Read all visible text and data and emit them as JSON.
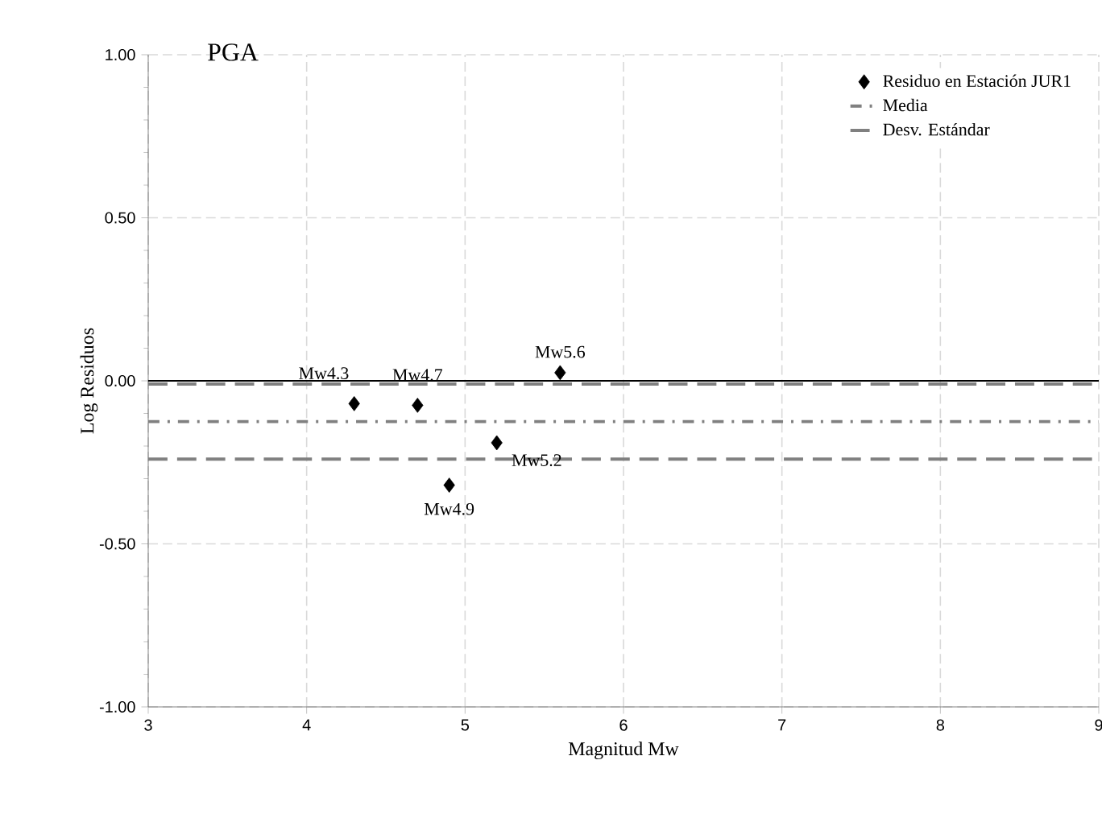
{
  "chart_data": {
    "type": "scatter",
    "title": "PGA",
    "xlabel": "Magnitud  Mw",
    "ylabel": "Log Residuos",
    "xlim": [
      3,
      9
    ],
    "xticks": [
      3,
      4,
      5,
      6,
      7,
      8,
      9
    ],
    "ylim": [
      -1,
      1
    ],
    "yticks": [
      {
        "value": -1,
        "label": "-1.00"
      },
      {
        "value": -0.5,
        "label": "-0.50"
      },
      {
        "value": 0,
        "label": "0.00"
      },
      {
        "value": 0.5,
        "label": "0.50"
      },
      {
        "value": 1,
        "label": "1.00"
      }
    ],
    "grid": true,
    "legend": "top right",
    "marker": "diamond",
    "x": [
      4.3,
      4.7,
      4.9,
      5.2,
      5.6
    ],
    "series": [
      {
        "name": "Residuo en Estación JUR1",
        "color": "#000000",
        "values": [
          -0.07,
          -0.075,
          -0.32,
          -0.19,
          0.025
        ]
      }
    ],
    "ref_lines": [
      {
        "axis": "y",
        "value": 0,
        "color": "#000000",
        "line_style": "solid"
      },
      {
        "axis": "y",
        "value": -0.125,
        "label": "Media",
        "color": "#808080",
        "line_style": "dashdot"
      },
      {
        "axis": "y",
        "value": -0.01,
        "label": "Desv. Estándar",
        "color": "#808080",
        "line_style": "dashed"
      },
      {
        "axis": "y",
        "value": -0.24,
        "color": "#808080",
        "line_style": "dashed"
      }
    ],
    "annotations": [
      {
        "text": "Mw4.3",
        "x": 4.3,
        "y": -0.07
      },
      {
        "text": "Mw4.7",
        "x": 4.7,
        "y": -0.075
      },
      {
        "text": "Mw4.9",
        "x": 4.9,
        "y": -0.32
      },
      {
        "text": "Mw5.2",
        "x": 5.2,
        "y": -0.19
      },
      {
        "text": "Mw5.6",
        "x": 5.6,
        "y": 0.025
      }
    ]
  }
}
